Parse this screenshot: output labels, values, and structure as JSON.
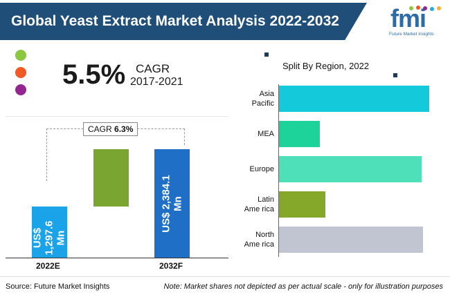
{
  "header": {
    "title": "Global Yeast Extract Market Analysis 2022-2032",
    "logo_text": "fmi",
    "logo_subtitle": "Future Market Insights"
  },
  "cagr_card": {
    "value": "5.5%",
    "label": "CAGR",
    "period": "2017-2021",
    "dot_colors": [
      "#8dc63f",
      "#f15a24",
      "#92278f"
    ]
  },
  "market_bars": {
    "cagr_label": "CAGR",
    "cagr_value": "6.3%",
    "bars": [
      {
        "year": "2022E",
        "label": "US$ 1,297.6 Mn",
        "value": 1297.6,
        "color": "#1aa3e8"
      },
      {
        "year": "",
        "label": "",
        "value": null,
        "color": "#7aa531"
      },
      {
        "year": "2032F",
        "label": "US$ 2,384.1 Mn",
        "value": 2384.1,
        "color": "#1f6fc6"
      }
    ]
  },
  "footer": {
    "source": "Source: Future Market Insights",
    "note": "Note: Market shares not depicted as per actual scale - only for illustration purposes"
  },
  "chart_data": [
    {
      "type": "bar",
      "title": "Global Yeast Extract Market Analysis 2022-2032",
      "categories": [
        "2022E",
        "2032F"
      ],
      "values": [
        1297.6,
        2384.1
      ],
      "value_labels": [
        "US$ 1,297.6 Mn",
        "US$ 2,384.1 Mn"
      ],
      "units": "US$ Mn",
      "annotation": "CAGR 6.3%",
      "historical_cagr": "5.5% CAGR 2017-2021",
      "xlabel": "",
      "ylabel": ""
    },
    {
      "type": "bar",
      "orientation": "horizontal",
      "title": "Split By Region, 2022",
      "categories": [
        "Asia Pacific",
        "MEA",
        "Europe",
        "Latin America",
        "North America"
      ],
      "category_labels": [
        [
          "Asia",
          "Pacific"
        ],
        [
          "MEA"
        ],
        [
          "Europe"
        ],
        [
          "Latin",
          "Ame rica"
        ],
        [
          "North",
          "Ame rica"
        ]
      ],
      "values": [
        100,
        27,
        95,
        31,
        96
      ],
      "colors": [
        "#14c9d9",
        "#1dd39a",
        "#4ee0b8",
        "#86a82a",
        "#c0c5d1"
      ],
      "note": "relative illustrative shares, not to scale"
    }
  ]
}
